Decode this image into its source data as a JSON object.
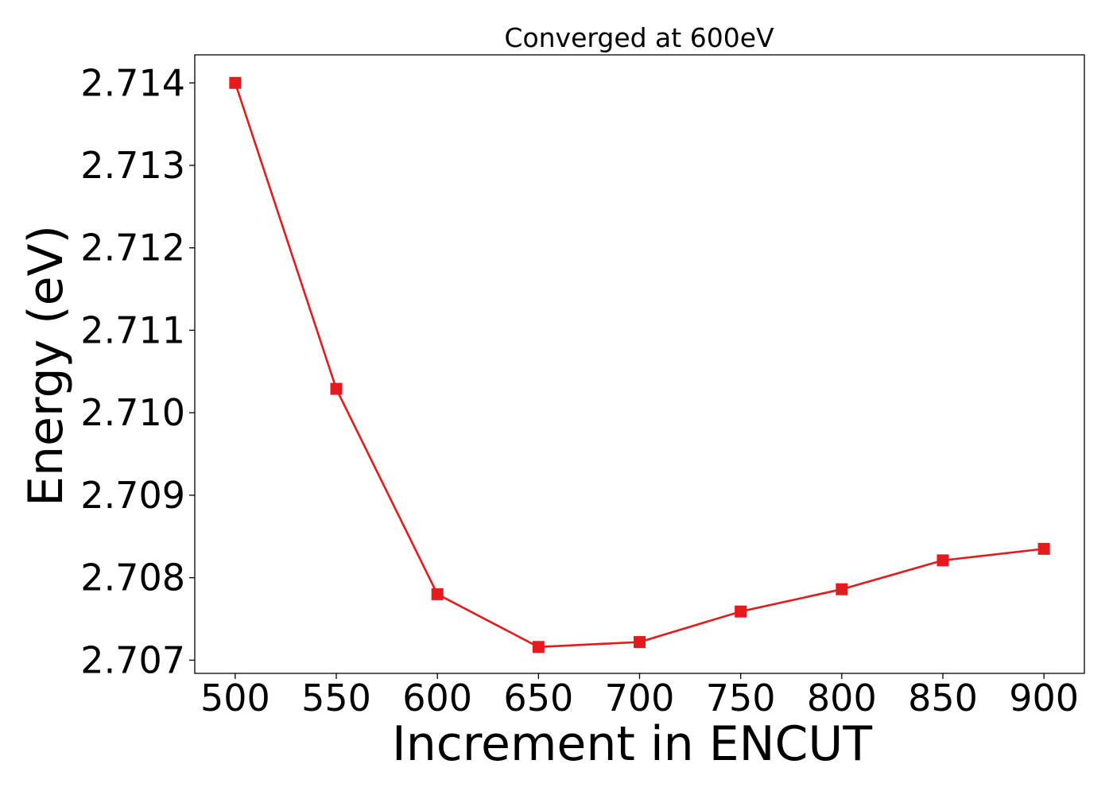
{
  "chart_data": {
    "type": "line",
    "title": "Converged at 600eV",
    "xlabel": "Increment in ENCUT",
    "ylabel": "Energy (eV)",
    "x": [
      500,
      550,
      600,
      650,
      700,
      750,
      800,
      850,
      900
    ],
    "series": [
      {
        "values": [
          2.714,
          2.71029,
          2.7078,
          2.70716,
          2.70722,
          2.70759,
          2.70786,
          2.70821,
          2.70835
        ],
        "color": "#e41a1c",
        "marker": "square"
      }
    ],
    "xticks": [
      500,
      550,
      600,
      650,
      700,
      750,
      800,
      850,
      900
    ],
    "xtick_labels": [
      "500",
      "550",
      "600",
      "650",
      "700",
      "750",
      "800",
      "850",
      "900"
    ],
    "yticks": [
      2.707,
      2.708,
      2.709,
      2.71,
      2.711,
      2.712,
      2.713,
      2.714
    ],
    "ytick_labels": [
      "2.707",
      "2.708",
      "2.709",
      "2.710",
      "2.711",
      "2.712",
      "2.713",
      "2.714"
    ],
    "xlim": [
      480,
      920
    ],
    "ylim": [
      2.70684,
      2.71434
    ],
    "grid": false,
    "legend": false
  }
}
